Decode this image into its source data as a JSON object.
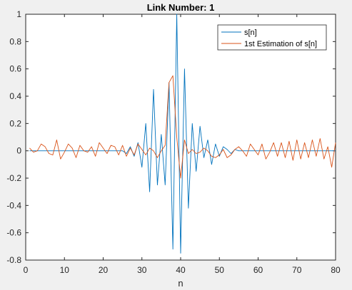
{
  "chart_data": {
    "type": "line",
    "title": "Link Number: 1",
    "xlabel": "n",
    "ylabel": "",
    "xlim": [
      0,
      80
    ],
    "ylim": [
      -0.8,
      1
    ],
    "xticks": [
      0,
      10,
      20,
      30,
      40,
      50,
      60,
      70,
      80
    ],
    "yticks": [
      -0.8,
      -0.6,
      -0.4,
      -0.2,
      0,
      0.2,
      0.4,
      0.6,
      0.8,
      1
    ],
    "grid": false,
    "legend_position": "top-right",
    "series": [
      {
        "name": "s[n]",
        "color": "#0072BD",
        "x": [
          1,
          2,
          3,
          4,
          5,
          6,
          7,
          8,
          9,
          10,
          11,
          12,
          13,
          14,
          15,
          16,
          17,
          18,
          19,
          20,
          21,
          22,
          23,
          24,
          25,
          26,
          27,
          28,
          29,
          30,
          31,
          32,
          33,
          34,
          35,
          36,
          37,
          38,
          39,
          40,
          41,
          42,
          43,
          44,
          45,
          46,
          47,
          48,
          49,
          50,
          51,
          52,
          53,
          54,
          55,
          56,
          57,
          58,
          59,
          60,
          61,
          62,
          63,
          64,
          65,
          66,
          67,
          68,
          69,
          70,
          71,
          72,
          73,
          74,
          75,
          76,
          77,
          78,
          79,
          80
        ],
        "values": [
          0,
          0,
          0,
          0,
          0,
          0,
          0,
          0,
          0,
          0,
          0,
          0,
          0,
          0,
          0,
          0,
          0,
          0,
          0,
          0,
          0,
          0,
          0,
          0,
          0,
          -0.02,
          0.03,
          -0.04,
          0.06,
          -0.12,
          0.2,
          -0.3,
          0.45,
          -0.25,
          0.12,
          -0.25,
          0.5,
          -0.72,
          1.0,
          -0.75,
          0.6,
          -0.42,
          0.2,
          -0.15,
          0.18,
          -0.05,
          0.08,
          -0.1,
          0.05,
          -0.04,
          0.03,
          0.01,
          -0.02,
          0.01,
          0,
          0,
          0,
          0,
          0,
          0,
          0,
          0,
          0,
          0,
          0,
          0,
          0,
          0,
          0,
          0,
          0,
          0,
          0,
          0,
          0,
          0,
          0,
          0,
          0,
          0
        ]
      },
      {
        "name": "1st Estimation of s[n]",
        "color": "#D95319",
        "x": [
          1,
          2,
          3,
          4,
          5,
          6,
          7,
          8,
          9,
          10,
          11,
          12,
          13,
          14,
          15,
          16,
          17,
          18,
          19,
          20,
          21,
          22,
          23,
          24,
          25,
          26,
          27,
          28,
          29,
          30,
          31,
          32,
          33,
          34,
          35,
          36,
          37,
          38,
          39,
          40,
          41,
          42,
          43,
          44,
          45,
          46,
          47,
          48,
          49,
          50,
          51,
          52,
          53,
          54,
          55,
          56,
          57,
          58,
          59,
          60,
          61,
          62,
          63,
          64,
          65,
          66,
          67,
          68,
          69,
          70,
          71,
          72,
          73,
          74,
          75,
          76,
          77,
          78,
          79,
          80
        ],
        "values": [
          0.02,
          -0.01,
          0.0,
          0.05,
          0.03,
          -0.02,
          -0.03,
          0.08,
          -0.06,
          -0.01,
          0.05,
          0.02,
          -0.05,
          0.04,
          0.0,
          -0.01,
          0.03,
          -0.04,
          0.06,
          0.02,
          -0.02,
          0.04,
          0.03,
          -0.03,
          0.04,
          -0.04,
          0.02,
          -0.03,
          0.05,
          0.01,
          -0.03,
          0.02,
          0.0,
          -0.05,
          0.0,
          0.04,
          0.5,
          0.55,
          0.1,
          -0.2,
          0.08,
          -0.02,
          0.01,
          -0.02,
          -0.01,
          0.02,
          0.0,
          -0.04,
          -0.05,
          -0.03,
          0.01,
          -0.05,
          -0.03,
          0.01,
          0.03,
          0.0,
          -0.04,
          0.05,
          0.01,
          -0.03,
          0.05,
          -0.06,
          -0.01,
          0.06,
          -0.04,
          0.06,
          -0.05,
          0.07,
          -0.07,
          0.08,
          -0.06,
          0.06,
          -0.05,
          0.08,
          -0.04,
          0.09,
          -0.06,
          0.03,
          -0.12,
          0.06
        ]
      }
    ]
  }
}
